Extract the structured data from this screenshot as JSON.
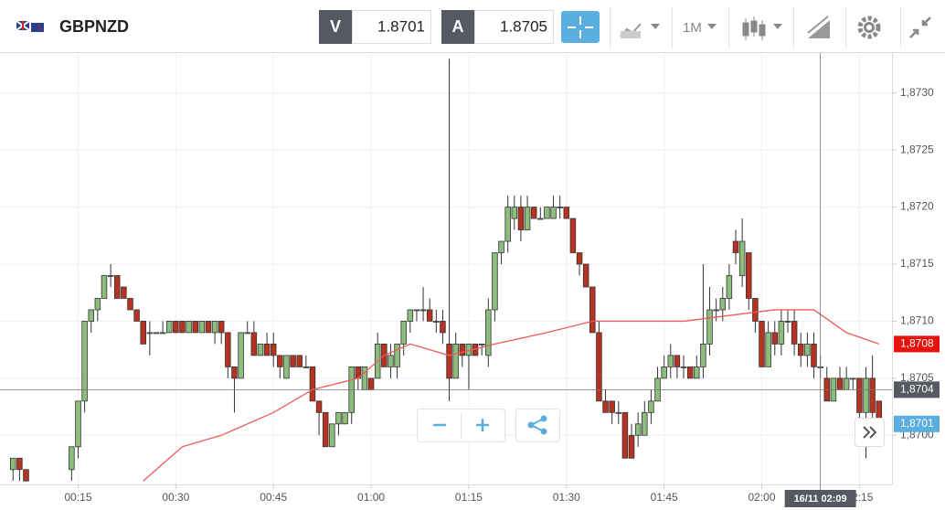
{
  "toolbar": {
    "symbol": "GBPNZD",
    "bid_label": "V",
    "bid": "1.8701",
    "ask_label": "A",
    "ask": "1.8705",
    "timeframe": "1M"
  },
  "chart_data": {
    "type": "candlestick",
    "x": [
      5,
      6,
      7,
      14,
      15,
      16,
      17,
      18,
      19,
      20,
      21,
      22,
      23,
      24,
      25,
      26,
      27,
      28,
      29,
      30,
      31,
      32,
      33,
      34,
      35,
      36,
      37,
      38,
      39,
      40,
      41,
      42,
      43,
      44,
      45,
      46,
      47,
      48,
      49,
      50,
      51,
      52,
      53,
      54,
      55,
      56,
      57,
      58,
      59,
      60,
      61,
      62,
      63,
      64,
      65,
      66,
      67,
      68,
      69,
      70,
      71,
      72,
      73,
      74,
      75,
      76,
      77,
      78,
      79,
      80,
      81,
      82,
      83,
      84,
      85,
      86,
      87,
      88,
      89,
      90,
      91,
      92,
      93,
      94,
      95,
      96,
      97,
      98,
      99,
      100,
      101,
      102,
      103,
      104,
      105,
      106,
      107,
      108,
      109,
      110,
      111,
      112,
      113,
      114,
      115,
      116,
      117,
      118,
      119,
      120,
      121,
      122,
      123,
      124,
      125,
      126,
      127,
      128,
      129,
      130,
      131,
      132,
      133,
      134,
      135,
      136,
      137,
      138
    ],
    "open": [
      1.8697,
      1.8698,
      1.8697,
      1.8697,
      1.8699,
      1.8703,
      1.871,
      1.8711,
      1.8712,
      1.8714,
      1.8714,
      1.8713,
      1.8712,
      1.8711,
      1.871,
      1.8709,
      1.8709,
      1.8709,
      1.8709,
      1.871,
      1.871,
      1.8709,
      1.871,
      1.8709,
      1.871,
      1.8709,
      1.871,
      1.8709,
      1.8706,
      1.8705,
      1.8709,
      1.8709,
      1.8707,
      1.8708,
      1.8708,
      1.8707,
      1.8705,
      1.8707,
      1.8707,
      1.8706,
      1.8706,
      1.8703,
      1.8702,
      1.8699,
      1.8701,
      1.8701,
      1.8702,
      1.8706,
      1.8704,
      1.8705,
      1.8705,
      1.8708,
      1.8706,
      1.8706,
      1.8708,
      1.871,
      1.8711,
      1.8711,
      1.8711,
      1.871,
      1.871,
      1.8708,
      1.8705,
      1.8708,
      1.8707,
      1.8708,
      1.8708,
      1.8707,
      1.8711,
      1.8716,
      1.8717,
      1.8719,
      1.872,
      1.8718,
      1.872,
      1.8719,
      1.8719,
      1.8719,
      1.872,
      1.872,
      1.8719,
      1.8716,
      1.8715,
      1.8713,
      1.8709,
      1.8703,
      1.8703,
      1.8702,
      1.8702,
      1.87,
      1.87,
      1.87,
      1.8702,
      1.8703,
      1.8705,
      1.8706,
      1.8707,
      1.8706,
      1.8706,
      1.8705,
      1.8706,
      1.8708,
      1.8711,
      1.8711,
      1.8712,
      1.8717,
      1.8714,
      1.8716,
      1.8712,
      1.871,
      1.8706,
      1.8709,
      1.8708,
      1.871,
      1.871,
      1.8708,
      1.8707,
      1.8708,
      1.8706,
      1.8705,
      1.8703,
      1.8705,
      1.8704,
      1.8705,
      1.8705,
      1.8702,
      1.8705,
      1.8703
    ],
    "high": [
      1.8698,
      1.8698,
      1.8697,
      1.8699,
      1.8703,
      1.871,
      1.8711,
      1.8712,
      1.8714,
      1.8715,
      1.8714,
      1.8713,
      1.8712,
      1.8711,
      1.871,
      1.871,
      1.8709,
      1.871,
      1.871,
      1.871,
      1.871,
      1.871,
      1.871,
      1.871,
      1.871,
      1.871,
      1.871,
      1.8709,
      1.8706,
      1.8709,
      1.871,
      1.871,
      1.8708,
      1.8709,
      1.8709,
      1.8707,
      1.8707,
      1.8707,
      1.8707,
      1.8707,
      1.8706,
      1.8703,
      1.8702,
      1.8701,
      1.8702,
      1.8702,
      1.8706,
      1.8706,
      1.8706,
      1.8705,
      1.8709,
      1.8708,
      1.8708,
      1.8708,
      1.871,
      1.8711,
      1.8711,
      1.8713,
      1.8712,
      1.8711,
      1.8711,
      1.8733,
      1.8709,
      1.8708,
      1.8708,
      1.8708,
      1.8708,
      1.8712,
      1.8716,
      1.8717,
      1.8721,
      1.8721,
      1.8721,
      1.8721,
      1.872,
      1.872,
      1.872,
      1.8721,
      1.8721,
      1.872,
      1.8719,
      1.8716,
      1.8715,
      1.8713,
      1.871,
      1.8704,
      1.8703,
      1.8703,
      1.8702,
      1.8701,
      1.8702,
      1.8703,
      1.8704,
      1.8706,
      1.8707,
      1.8708,
      1.8707,
      1.8707,
      1.8706,
      1.8707,
      1.8715,
      1.8713,
      1.8712,
      1.8713,
      1.8715,
      1.8718,
      1.8719,
      1.8716,
      1.8712,
      1.871,
      1.871,
      1.871,
      1.8711,
      1.8711,
      1.8711,
      1.8709,
      1.8709,
      1.8709,
      1.8707,
      1.8706,
      1.8705,
      1.8706,
      1.8706,
      1.8705,
      1.8705,
      1.8706,
      1.8707,
      1.8703
    ],
    "low": [
      1.8696,
      1.8696,
      1.8696,
      1.8696,
      1.8698,
      1.8702,
      1.8709,
      1.871,
      1.8712,
      1.8713,
      1.8712,
      1.8712,
      1.8711,
      1.871,
      1.8708,
      1.8707,
      1.8709,
      1.8709,
      1.8709,
      1.8709,
      1.8709,
      1.8709,
      1.8709,
      1.8709,
      1.8709,
      1.8708,
      1.8708,
      1.8705,
      1.8702,
      1.8705,
      1.8709,
      1.8707,
      1.8707,
      1.8707,
      1.8706,
      1.8705,
      1.8705,
      1.8706,
      1.8706,
      1.8706,
      1.8703,
      1.87,
      1.8699,
      1.8699,
      1.87,
      1.8701,
      1.8701,
      1.8704,
      1.8704,
      1.8704,
      1.8705,
      1.8706,
      1.8705,
      1.8705,
      1.8707,
      1.8709,
      1.871,
      1.871,
      1.871,
      1.8709,
      1.8708,
      1.8703,
      1.8705,
      1.8706,
      1.8704,
      1.8707,
      1.8707,
      1.8706,
      1.871,
      1.8715,
      1.8716,
      1.8718,
      1.8717,
      1.8718,
      1.8719,
      1.8719,
      1.8719,
      1.8719,
      1.8719,
      1.8719,
      1.8716,
      1.8714,
      1.8713,
      1.8709,
      1.8703,
      1.8702,
      1.8701,
      1.8701,
      1.8698,
      1.8698,
      1.8699,
      1.87,
      1.8701,
      1.8703,
      1.8705,
      1.8705,
      1.8705,
      1.8705,
      1.8705,
      1.8705,
      1.8705,
      1.8707,
      1.871,
      1.871,
      1.8711,
      1.8715,
      1.8713,
      1.8711,
      1.8709,
      1.8706,
      1.8706,
      1.8707,
      1.8707,
      1.8709,
      1.8707,
      1.8706,
      1.8706,
      1.8705,
      1.8705,
      1.8703,
      1.8703,
      1.8704,
      1.8704,
      1.8704,
      1.8701,
      1.8698,
      1.8701,
      1.87
    ],
    "close": [
      1.8698,
      1.8697,
      1.8696,
      1.8699,
      1.8703,
      1.871,
      1.8711,
      1.8712,
      1.8714,
      1.8714,
      1.8712,
      1.8712,
      1.8711,
      1.871,
      1.8708,
      1.8709,
      1.8709,
      1.8709,
      1.871,
      1.8709,
      1.8709,
      1.871,
      1.8709,
      1.871,
      1.8709,
      1.871,
      1.8709,
      1.8706,
      1.8705,
      1.8709,
      1.8709,
      1.8707,
      1.8708,
      1.8707,
      1.8707,
      1.8706,
      1.8707,
      1.8706,
      1.8706,
      1.8706,
      1.8703,
      1.8702,
      1.8699,
      1.8701,
      1.8702,
      1.8702,
      1.8706,
      1.8705,
      1.8706,
      1.8704,
      1.8708,
      1.8706,
      1.8707,
      1.8708,
      1.871,
      1.8711,
      1.8711,
      1.8711,
      1.871,
      1.871,
      1.8709,
      1.8705,
      1.8708,
      1.8707,
      1.8708,
      1.8707,
      1.8708,
      1.8711,
      1.8716,
      1.8717,
      1.872,
      1.872,
      1.8718,
      1.872,
      1.8719,
      1.8719,
      1.872,
      1.872,
      1.872,
      1.8719,
      1.8716,
      1.8715,
      1.8713,
      1.8709,
      1.8703,
      1.8702,
      1.8702,
      1.8702,
      1.8698,
      1.8698,
      1.8701,
      1.8702,
      1.8703,
      1.8705,
      1.8706,
      1.8707,
      1.8706,
      1.8706,
      1.8705,
      1.8706,
      1.8708,
      1.8711,
      1.8711,
      1.8712,
      1.8714,
      1.8716,
      1.8717,
      1.8712,
      1.871,
      1.8706,
      1.8709,
      1.8708,
      1.871,
      1.871,
      1.8708,
      1.8707,
      1.8708,
      1.8706,
      1.8706,
      1.8703,
      1.8705,
      1.8704,
      1.8705,
      1.8705,
      1.8702,
      1.8705,
      1.8702,
      1.8701
    ],
    "up_color": "#8dbd7c",
    "down_color": "#b53320",
    "overlay": {
      "color": "#ef5a5a",
      "x": [
        25,
        31,
        37,
        45,
        51,
        58,
        62,
        66,
        72,
        79,
        87,
        94,
        101,
        108,
        115,
        122,
        128,
        133,
        138
      ],
      "values": [
        1.8696,
        1.8699,
        1.87,
        1.8702,
        1.8704,
        1.8705,
        1.8707,
        1.8708,
        1.8707,
        1.8708,
        1.8709,
        1.871,
        1.871,
        1.871,
        1.87105,
        1.8711,
        1.8711,
        1.8709,
        1.8708
      ]
    },
    "xlim": [
      3,
      140
    ],
    "xticks": [
      {
        "value": 15,
        "label": "00:15"
      },
      {
        "value": 30,
        "label": "00:30"
      },
      {
        "value": 45,
        "label": "00:45"
      },
      {
        "value": 60,
        "label": "01:00"
      },
      {
        "value": 75,
        "label": "01:15"
      },
      {
        "value": 90,
        "label": "01:30"
      },
      {
        "value": 105,
        "label": "01:45"
      },
      {
        "value": 120,
        "label": "02:00"
      },
      {
        "value": 135,
        "label": "02:15"
      }
    ],
    "ylim": [
      1.86961,
      1.87335
    ],
    "yticks": [
      {
        "value": 1.87,
        "label": "1,8700"
      },
      {
        "value": 1.8705,
        "label": "1,8705"
      },
      {
        "value": 1.871,
        "label": "1,8710"
      },
      {
        "value": 1.8715,
        "label": "1,8715"
      },
      {
        "value": 1.872,
        "label": "1,8720"
      },
      {
        "value": 1.8725,
        "label": "1,8725"
      },
      {
        "value": 1.873,
        "label": "1,8730"
      }
    ],
    "grid": true,
    "crosshair": {
      "x": 129,
      "x_label": "16/11 02:09",
      "y": 1.8704
    },
    "price_markers": [
      {
        "value": 1.8708,
        "label": "1,8708",
        "color": "#e8120c"
      },
      {
        "value": 1.8704,
        "label": "1,8704",
        "color": "#555a62"
      },
      {
        "value": 1.8701,
        "label": "1,8701",
        "color": "#5aaee0"
      }
    ]
  }
}
